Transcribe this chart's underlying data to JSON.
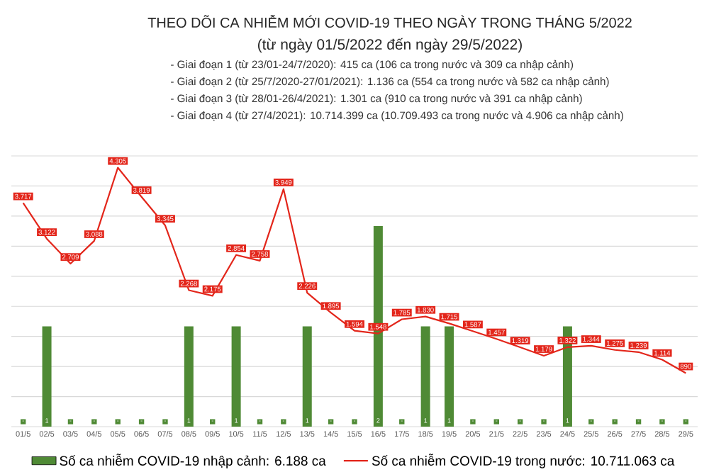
{
  "chart_data": {
    "type": "line",
    "title": "THEO DÕI CA NHIỄM MỚI COVID-19 THEO NGÀY TRONG THÁNG 5/2022",
    "subtitle": "(từ ngày 01/5/2022 đến ngày 29/5/2022)",
    "annotations": [
      "- Giai đoạn 1 (từ 23/01-24/7/2020): 415 ca (106 ca trong nước và 309 ca nhập cảnh)",
      "- Giai đoạn 2 (từ 25/7/2020-27/01/2021): 1.136 ca (554 ca trong nước và 582 ca nhập cảnh)",
      "- Giai đoạn 3 (từ 28/01-26/4/2021): 1.301 ca (910 ca trong nước và 391 ca nhập cảnh)",
      "- Giai đoạn 4 (từ 27/4/2021): 10.714.399 ca (10.709.493 ca trong nước và 4.906 ca nhập cảnh)"
    ],
    "categories": [
      "01/5",
      "02/5",
      "03/5",
      "04/5",
      "05/5",
      "06/5",
      "07/5",
      "08/5",
      "09/5",
      "10/5",
      "11/5",
      "12/5",
      "13/5",
      "14/5",
      "15/5",
      "16/5",
      "17/5",
      "18/5",
      "19/5",
      "20/5",
      "21/5",
      "22/5",
      "23/5",
      "24/5",
      "25/5",
      "26/5",
      "27/5",
      "28/5",
      "29/5"
    ],
    "series": [
      {
        "name": "Số ca nhiễm COVID-19 nhập cảnh: 6.188 ca",
        "type": "bar",
        "axis": "y2",
        "color": "#4f8a35",
        "values": [
          0,
          1,
          0,
          0,
          0,
          0,
          0,
          1,
          0,
          1,
          0,
          0,
          1,
          0,
          0,
          2,
          0,
          1,
          1,
          0,
          0,
          0,
          0,
          1,
          0,
          0,
          0,
          0,
          0
        ],
        "value_labels": [
          "-",
          "1",
          "-",
          "-",
          "-",
          "-",
          "-",
          "1",
          "-",
          "1",
          "-",
          "-",
          "1",
          "-",
          "-",
          "2",
          "-",
          "1",
          "1",
          "-",
          "-",
          "-",
          "-",
          "1",
          "-",
          "-",
          "-",
          "-",
          "-"
        ]
      },
      {
        "name": "Số ca nhiễm COVID-19 trong nước: 10.711.063 ca",
        "color": "#e3261b",
        "values": [
          3717,
          3122,
          2709,
          3088,
          4305,
          3819,
          3345,
          2268,
          2175,
          2854,
          2758,
          3949,
          2226,
          1895,
          1594,
          1548,
          1785,
          1830,
          1715,
          1587,
          1457,
          1319,
          1179,
          1322,
          1344,
          1275,
          1239,
          1114,
          890
        ],
        "value_labels": [
          "3.717",
          "3.122",
          "2.709",
          "3.088",
          "4.305",
          "3.819",
          "3.345",
          "2.268",
          "2.175",
          "2.854",
          "2.758",
          "3.949",
          "2.226",
          "1.895",
          "1.594",
          "1.548",
          "1.785",
          "1.830",
          "1.715",
          "1.587",
          "1.457",
          "1.319",
          "1.179",
          "1.322",
          "1.344",
          "1.275",
          "1.239",
          "1.114",
          "890"
        ]
      }
    ],
    "ylim": [
      0,
      4500
    ],
    "yticks": [
      {
        "value": 0,
        "label": null
      },
      {
        "value": 500,
        "label": null
      },
      {
        "value": 1000,
        "label": null
      },
      {
        "value": 1500,
        "label": null
      },
      {
        "value": 2000,
        "label": null
      },
      {
        "value": 2500,
        "label": null
      },
      {
        "value": 3000,
        "label": null
      },
      {
        "value": 3500,
        "label": null
      },
      {
        "value": 4000,
        "label": null
      },
      {
        "value": 4500,
        "label": null
      }
    ],
    "y2lim": [
      0,
      2.7
    ],
    "grid": "y",
    "legend": "bottom",
    "tick_labels": "x"
  }
}
